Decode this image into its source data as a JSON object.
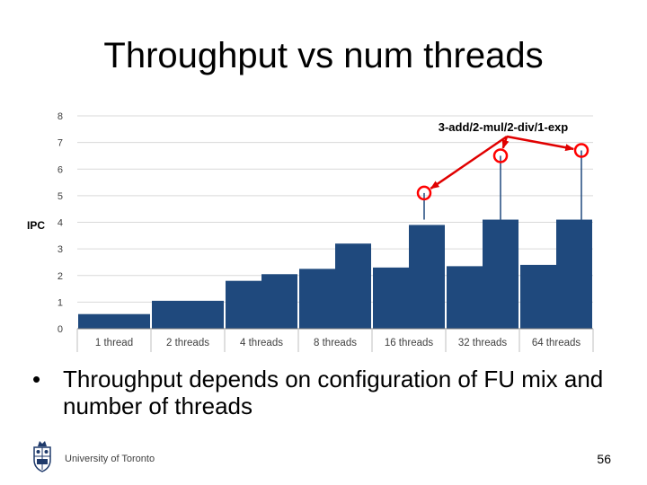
{
  "slide": {
    "title": "Throughput vs num threads",
    "bullet": "Throughput depends on configuration of FU mix and number of threads",
    "footer": "University of Toronto",
    "page_number": "56"
  },
  "chart_data": {
    "type": "bar",
    "title": "",
    "xlabel": "",
    "ylabel": "IPC",
    "ylim": [
      0,
      8
    ],
    "y_ticks": [
      0,
      1,
      2,
      3,
      4,
      5,
      6,
      7,
      8
    ],
    "grid": true,
    "legend": "none",
    "bar_color": "#1F497D",
    "annotation": {
      "text": "3-add/2-mul/2-div/1-exp",
      "color": "#FF0000",
      "points": [
        {
          "category": "16 threads",
          "value": 5.1
        },
        {
          "category": "32 threads",
          "value": 6.5
        },
        {
          "category": "64 threads",
          "value": 6.7
        }
      ]
    },
    "categories": [
      "1 thread",
      "2 threads",
      "4 threads",
      "8 threads",
      "16 threads",
      "32 threads",
      "64 threads"
    ],
    "groups": [
      {
        "category": "1 thread",
        "segments": [
          0.55
        ]
      },
      {
        "category": "2 threads",
        "segments": [
          1.05
        ]
      },
      {
        "category": "4 threads",
        "segments": [
          1.8,
          2.05
        ]
      },
      {
        "category": "8 threads",
        "segments": [
          2.25,
          3.2
        ]
      },
      {
        "category": "16 threads",
        "segments": [
          2.3,
          3.9
        ]
      },
      {
        "category": "32 threads",
        "segments": [
          2.35,
          4.1
        ]
      },
      {
        "category": "64 threads",
        "segments": [
          2.4,
          4.1
        ]
      }
    ]
  }
}
